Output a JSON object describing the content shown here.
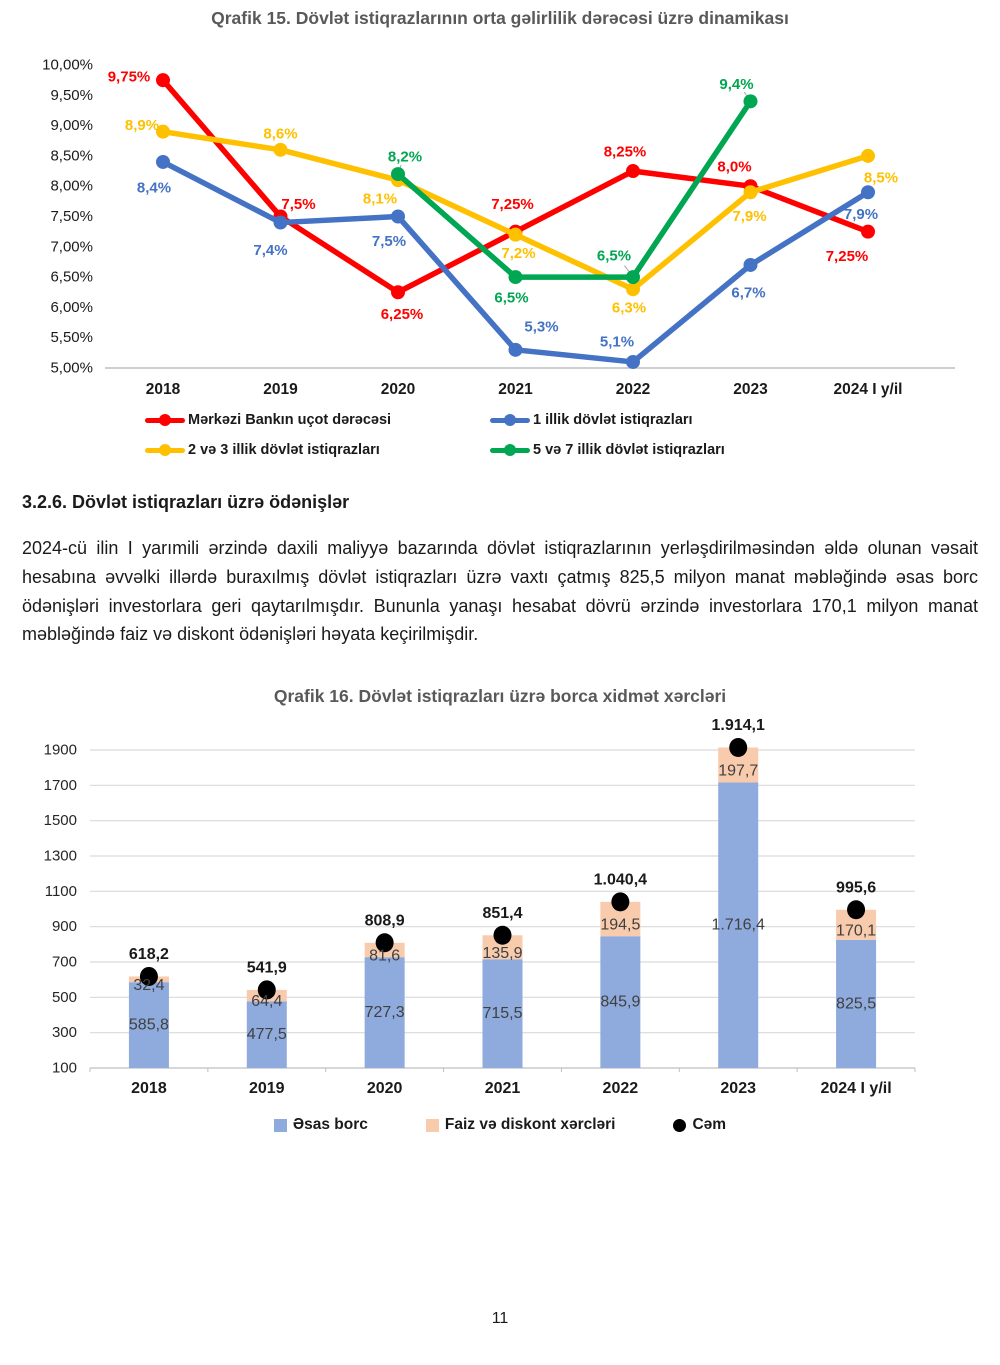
{
  "page": {
    "number": "11"
  },
  "section": {
    "heading": "3.2.6. Dövlət istiqrazları üzrə ödənişlər",
    "paragraph": "2024-cü ilin I yarımili ərzində daxili maliyyə bazarında dövlət istiqrazlarının yerləşdirilməsindən əldə olunan vəsait hesabına əvvəlki illərdə buraxılmış dövlət istiqrazları üzrə vaxtı çatmış 825,5 milyon manat məbləğində əsas borc ödənişləri investorlara geri qaytarılmışdır. Bununla yanaşı hesabat dövrü ərzində investorlara 170,1 milyon manat məbləğində faiz və diskont ödənişləri həyata keçirilmişdir."
  },
  "chart_data": [
    {
      "type": "line",
      "title": "Qrafik 15. Dövlət istiqrazlarının orta gəlirlilik dərəcəsi üzrə dinamikası",
      "categories": [
        "2018",
        "2019",
        "2020",
        "2021",
        "2022",
        "2023",
        "2024 I y/il"
      ],
      "ylim": [
        5.0,
        10.0
      ],
      "grid": false,
      "legend_position": "bottom",
      "y_ticks": [
        {
          "label": "10,00%",
          "value": 10.0
        },
        {
          "label": "9,50%",
          "value": 9.5
        },
        {
          "label": "9,00%",
          "value": 9.0
        },
        {
          "label": "8,50%",
          "value": 8.5
        },
        {
          "label": "8,00%",
          "value": 8.0
        },
        {
          "label": "7,50%",
          "value": 7.5
        },
        {
          "label": "7,00%",
          "value": 7.0
        },
        {
          "label": "6,50%",
          "value": 6.5
        },
        {
          "label": "6,00%",
          "value": 6.0
        },
        {
          "label": "5,50%",
          "value": 5.5
        },
        {
          "label": "5,00%",
          "value": 5.0
        }
      ],
      "series": [
        {
          "name": "Mərkəzi Bankın uçot dərəcəsi",
          "color": "#FF0000",
          "values": [
            9.75,
            7.5,
            6.25,
            7.25,
            8.25,
            8.0,
            7.25
          ],
          "labels": [
            "9,75%",
            "7,5%",
            "6,25%",
            "7,25%",
            "8,25%",
            "8,0%",
            "7,25%"
          ],
          "label_offsets": [
            [
              -34,
              -3
            ],
            [
              18,
              -12
            ],
            [
              4,
              22
            ],
            [
              -3,
              -27
            ],
            [
              -8,
              -19
            ],
            [
              -16,
              -19
            ],
            [
              -21,
              25
            ]
          ],
          "leader": [
            false,
            false,
            false,
            false,
            false,
            false,
            false
          ]
        },
        {
          "name": "1 illik dövlət istiqrazları",
          "color": "#4472C4",
          "values": [
            8.4,
            7.4,
            7.5,
            5.3,
            5.1,
            6.7,
            7.9
          ],
          "labels": [
            "8,4%",
            "7,4%",
            "7,5%",
            "5,3%",
            "5,1%",
            "6,7%",
            "7,9%"
          ],
          "label_offsets": [
            [
              -9,
              26
            ],
            [
              -10,
              28
            ],
            [
              -9,
              25
            ],
            [
              26,
              -23
            ],
            [
              -16,
              -20
            ],
            [
              -2,
              28
            ],
            [
              -7,
              22
            ]
          ],
          "leader": [
            false,
            false,
            false,
            false,
            false,
            false,
            false
          ]
        },
        {
          "name": "2 və 3 illik dövlət istiqrazları",
          "color": "#FFC000",
          "values": [
            8.9,
            8.6,
            8.1,
            7.2,
            6.3,
            7.9,
            8.5
          ],
          "labels": [
            "8,9%",
            "8,6%",
            "8,1%",
            "7,2%",
            "6,3%",
            "7,9%",
            "8,5%"
          ],
          "label_offsets": [
            [
              -21,
              -6
            ],
            [
              0,
              -16
            ],
            [
              -18,
              19
            ],
            [
              3,
              19
            ],
            [
              -4,
              19
            ],
            [
              -1,
              24
            ],
            [
              13,
              22
            ]
          ],
          "leader": [
            false,
            false,
            false,
            false,
            false,
            false,
            false
          ]
        },
        {
          "name": "5 və 7 illik dövlət istiqrazları",
          "color": "#00A651",
          "values": [
            null,
            null,
            8.2,
            6.5,
            6.5,
            9.4,
            null
          ],
          "labels": [
            null,
            null,
            "8,2%",
            "6,5%",
            "6,5%",
            "9,4%",
            null
          ],
          "label_offsets": [
            null,
            null,
            [
              7,
              -17
            ],
            [
              -4,
              21
            ],
            [
              -19,
              -21
            ],
            [
              -14,
              -17
            ],
            null
          ],
          "leader": [
            false,
            false,
            true,
            false,
            true,
            true,
            false
          ]
        }
      ]
    },
    {
      "type": "bar",
      "title": "Qrafik 16. Dövlət istiqrazları üzrə borca xidmət xərcləri",
      "categories": [
        "2018",
        "2019",
        "2020",
        "2021",
        "2022",
        "2023",
        "2024 I y/il"
      ],
      "ylim": [
        100,
        1900
      ],
      "grid": true,
      "legend_position": "bottom",
      "y_ticks": [
        1900,
        1700,
        1500,
        1300,
        1100,
        900,
        700,
        500,
        300,
        100
      ],
      "series": [
        {
          "name": "Əsas borc",
          "color": "#8FAADC",
          "values": [
            585.8,
            477.5,
            727.3,
            715.5,
            845.9,
            1716.4,
            825.5
          ],
          "labels": [
            "585,8",
            "477,5",
            "727,3",
            "715,5",
            "845,9",
            "1.716,4",
            "825,5"
          ]
        },
        {
          "name": "Faiz və diskont xərcləri",
          "color": "#F8CBAD",
          "values": [
            32.4,
            64.4,
            81.6,
            135.9,
            194.5,
            197.7,
            170.1
          ],
          "labels": [
            "32,4",
            "64,4",
            "81,6",
            "135,9",
            "194,5",
            "197,7",
            "170,1"
          ]
        }
      ],
      "total": {
        "name": "Cəm",
        "color": "#000000",
        "values": [
          618.2,
          541.9,
          808.9,
          851.4,
          1040.4,
          1914.1,
          995.6
        ],
        "labels": [
          "618,2",
          "541,9",
          "808,9",
          "851,4",
          "1.040,4",
          "1.914,1",
          "995,6"
        ]
      }
    }
  ]
}
